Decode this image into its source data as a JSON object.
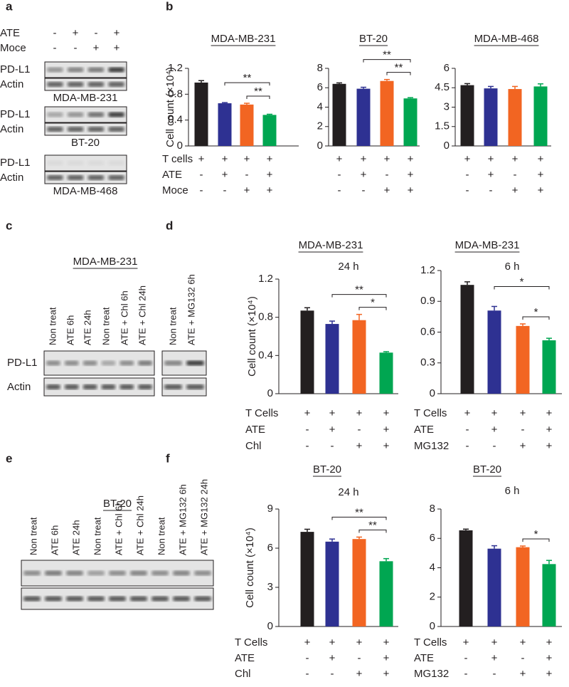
{
  "panel_labels": [
    "a",
    "b",
    "c",
    "d",
    "e",
    "f"
  ],
  "blot_a": {
    "conditions": [
      {
        "name": "ATE",
        "signs": [
          "-",
          "+",
          "-",
          "+"
        ]
      },
      {
        "name": "Moce",
        "signs": [
          "-",
          "-",
          "+",
          "+"
        ]
      }
    ],
    "blots": [
      {
        "cell_line": "MDA-MB-231",
        "rows": [
          "PD-L1",
          "Actin"
        ]
      },
      {
        "cell_line": "BT-20",
        "rows": [
          "PD-L1",
          "Actin"
        ]
      },
      {
        "cell_line": "MDA-MB-468",
        "rows": [
          "PD-L1",
          "Actin"
        ]
      }
    ]
  },
  "blot_c": {
    "title": "MDA-MB-231",
    "lanes": [
      "Non treat",
      "ATE 6h",
      "ATE 24h",
      "Non treat",
      "ATE + Chl 6h",
      "ATE + Chl 24h",
      "Non treat",
      "ATE + MG132 6h"
    ],
    "rows": [
      "PD-L1",
      "Actin"
    ]
  },
  "blot_e": {
    "title": "BT-20",
    "lanes": [
      "Non treat",
      "ATE 6h",
      "ATE 24h",
      "Non treat",
      "ATE + Chl 6h",
      "ATE + Chl 24h",
      "Non treat",
      "ATE + MG132 6h",
      "ATE + MG132 24h"
    ]
  },
  "chart_data": [
    {
      "type": "bar",
      "title": "MDA-MB-231",
      "ylabel": "Cell count (×10⁴)",
      "values": [
        0.98,
        0.66,
        0.64,
        0.48
      ],
      "errors": [
        0.03,
        0.01,
        0.02,
        0.01
      ],
      "colors": [
        "#231f20",
        "#2e3192",
        "#f26522",
        "#00a651"
      ],
      "ylim": [
        0,
        1.2
      ],
      "yticks": [
        0,
        0.4,
        0.8,
        1.2
      ],
      "significance": [
        {
          "from": 1,
          "to": 3,
          "label": "**"
        },
        {
          "from": 2,
          "to": 3,
          "label": "**"
        }
      ],
      "conditions": [
        {
          "name": "T cells",
          "signs": [
            "+",
            "+",
            "+",
            "+"
          ]
        },
        {
          "name": "ATE",
          "signs": [
            "-",
            "+",
            "-",
            "+"
          ]
        },
        {
          "name": "Moce",
          "signs": [
            "-",
            "-",
            "+",
            "+"
          ]
        }
      ]
    },
    {
      "type": "bar",
      "title": "BT-20",
      "values": [
        6.4,
        5.9,
        6.7,
        4.9
      ],
      "errors": [
        0.1,
        0.15,
        0.15,
        0.08
      ],
      "colors": [
        "#231f20",
        "#2e3192",
        "#f26522",
        "#00a651"
      ],
      "ylim": [
        0,
        8
      ],
      "yticks": [
        0,
        2,
        4,
        6,
        8
      ],
      "significance": [
        {
          "from": 1,
          "to": 3,
          "label": "**"
        },
        {
          "from": 2,
          "to": 3,
          "label": "**"
        }
      ],
      "conditions": [
        {
          "signs": [
            "+",
            "+",
            "+",
            "+"
          ]
        },
        {
          "signs": [
            "-",
            "+",
            "-",
            "+"
          ]
        },
        {
          "signs": [
            "-",
            "-",
            "+",
            "+"
          ]
        }
      ]
    },
    {
      "type": "bar",
      "title": "MDA-MB-468",
      "values": [
        4.7,
        4.45,
        4.4,
        4.6
      ],
      "errors": [
        0.12,
        0.15,
        0.2,
        0.2
      ],
      "colors": [
        "#231f20",
        "#2e3192",
        "#f26522",
        "#00a651"
      ],
      "ylim": [
        0,
        6
      ],
      "yticks": [
        0,
        1.5,
        3,
        4.5,
        6
      ],
      "significance": [],
      "conditions": [
        {
          "signs": [
            "+",
            "+",
            "+",
            "+"
          ]
        },
        {
          "signs": [
            "-",
            "+",
            "-",
            "+"
          ]
        },
        {
          "signs": [
            "-",
            "-",
            "+",
            "+"
          ]
        }
      ]
    },
    {
      "type": "bar",
      "title": "MDA-MB-231",
      "subtitle": "24 h",
      "ylabel": "Cell count (×10⁴)",
      "values": [
        0.87,
        0.73,
        0.77,
        0.43
      ],
      "errors": [
        0.03,
        0.03,
        0.06,
        0.01
      ],
      "colors": [
        "#231f20",
        "#2e3192",
        "#f26522",
        "#00a651"
      ],
      "ylim": [
        0,
        1.2
      ],
      "yticks": [
        0,
        0.4,
        0.8,
        1.2
      ],
      "significance": [
        {
          "from": 1,
          "to": 3,
          "label": "**"
        },
        {
          "from": 2,
          "to": 3,
          "label": "*"
        }
      ],
      "conditions": [
        {
          "name": "T Cells",
          "signs": [
            "+",
            "+",
            "+",
            "+"
          ]
        },
        {
          "name": "ATE",
          "signs": [
            "-",
            "+",
            "-",
            "+"
          ]
        },
        {
          "name": "Chl",
          "signs": [
            "-",
            "-",
            "+",
            "+"
          ]
        }
      ]
    },
    {
      "type": "bar",
      "title": "MDA-MB-231",
      "subtitle": "6 h",
      "values": [
        1.06,
        0.81,
        0.66,
        0.52
      ],
      "errors": [
        0.03,
        0.04,
        0.02,
        0.02
      ],
      "colors": [
        "#231f20",
        "#2e3192",
        "#f26522",
        "#00a651"
      ],
      "ylim": [
        0,
        1.2
      ],
      "yticks": [
        0,
        0.3,
        0.6,
        0.9,
        1.2
      ],
      "significance": [
        {
          "from": 1,
          "to": 3,
          "label": "*"
        },
        {
          "from": 2,
          "to": 3,
          "label": "*"
        }
      ],
      "conditions": [
        {
          "name": "T Cells",
          "signs": [
            "+",
            "+",
            "+",
            "+"
          ]
        },
        {
          "name": "ATE",
          "signs": [
            "-",
            "+",
            "-",
            "+"
          ]
        },
        {
          "name": "MG132",
          "signs": [
            "-",
            "-",
            "+",
            "+"
          ]
        }
      ]
    },
    {
      "type": "bar",
      "title": "BT-20",
      "subtitle": "24 h",
      "ylabel": "Cell count (×10⁴)",
      "values": [
        7.25,
        6.5,
        6.7,
        5.0
      ],
      "errors": [
        0.2,
        0.2,
        0.15,
        0.2
      ],
      "colors": [
        "#231f20",
        "#2e3192",
        "#f26522",
        "#00a651"
      ],
      "ylim": [
        0,
        9
      ],
      "yticks": [
        0,
        3,
        6,
        9
      ],
      "significance": [
        {
          "from": 1,
          "to": 3,
          "label": "**"
        },
        {
          "from": 2,
          "to": 3,
          "label": "**"
        }
      ],
      "conditions": [
        {
          "name": "T Cells",
          "signs": [
            "+",
            "+",
            "+",
            "+"
          ]
        },
        {
          "name": "ATE",
          "signs": [
            "-",
            "+",
            "-",
            "+"
          ]
        },
        {
          "name": "Chl",
          "signs": [
            "-",
            "-",
            "+",
            "+"
          ]
        }
      ]
    },
    {
      "type": "bar",
      "title": "BT-20",
      "subtitle": "6 h",
      "values": [
        6.55,
        5.3,
        5.4,
        4.25
      ],
      "errors": [
        0.08,
        0.2,
        0.08,
        0.25
      ],
      "colors": [
        "#231f20",
        "#2e3192",
        "#f26522",
        "#00a651"
      ],
      "ylim": [
        0,
        8
      ],
      "yticks": [
        0,
        2,
        4,
        6,
        8
      ],
      "significance": [
        {
          "from": 2,
          "to": 3,
          "label": "*"
        }
      ],
      "conditions": [
        {
          "name": "T Cells",
          "signs": [
            "+",
            "+",
            "+",
            "+"
          ]
        },
        {
          "name": "ATE",
          "signs": [
            "-",
            "+",
            "-",
            "+"
          ]
        },
        {
          "name": "MG132",
          "signs": [
            "-",
            "-",
            "+",
            "+"
          ]
        }
      ]
    }
  ]
}
